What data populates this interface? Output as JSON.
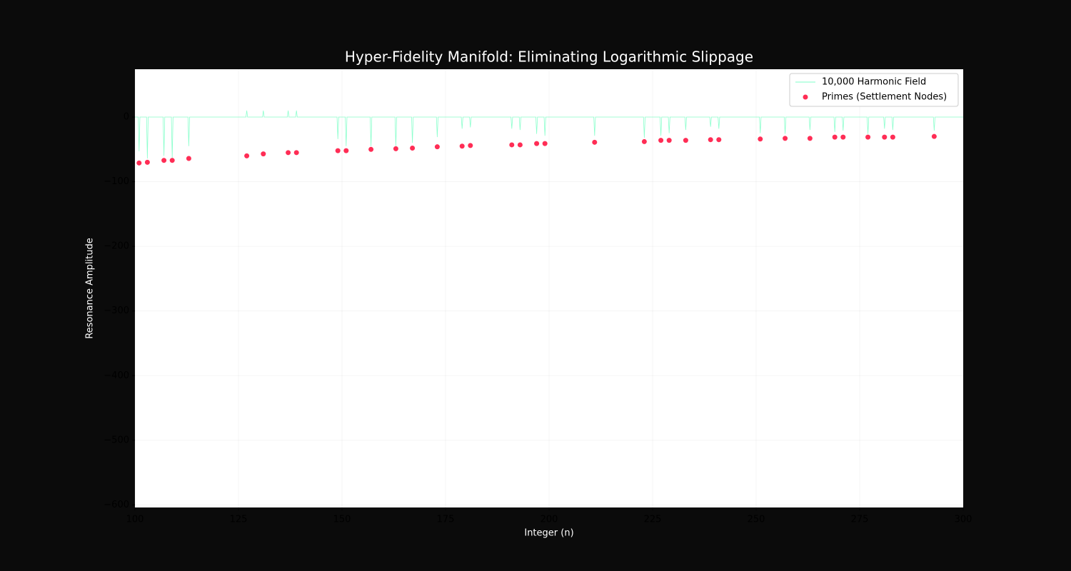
{
  "chart_data": {
    "type": "line",
    "title": "Hyper-Fidelity Manifold: Eliminating Logarithmic Slippage",
    "x_label": "Integer (n)",
    "y_label": "Resonance Amplitude",
    "xlim": [
      100,
      300
    ],
    "ylim": [
      -604,
      74
    ],
    "xticks": [
      100,
      125,
      150,
      175,
      200,
      225,
      250,
      275,
      300
    ],
    "yticks": [
      {
        "value": -600,
        "label": "−600"
      },
      {
        "value": -500,
        "label": "−500"
      },
      {
        "value": -400,
        "label": "−400"
      },
      {
        "value": -300,
        "label": "−300"
      },
      {
        "value": -200,
        "label": "−200"
      },
      {
        "value": -100,
        "label": "−100"
      },
      0
    ],
    "grid": true,
    "legend": "upper right",
    "series": [
      {
        "name": "10,000 Harmonic Field",
        "type": "line",
        "color": "#7fffc8",
        "x": [
          100,
          100.8,
          101,
          101.2,
          102.8,
          103,
          103.2,
          106.8,
          107,
          107.2,
          108.8,
          109,
          109.2,
          112.8,
          113,
          113.2,
          126.8,
          127,
          127.2,
          130.8,
          131,
          131.2,
          136.8,
          137,
          137.2,
          138.8,
          139,
          139.2,
          148.8,
          149,
          149.2,
          150.8,
          151,
          151.2,
          156.8,
          157,
          157.2,
          162.8,
          163,
          163.2,
          166.8,
          167,
          167.2,
          172.8,
          173,
          173.2,
          178.8,
          179,
          179.2,
          180.8,
          181,
          181.2,
          190.8,
          191,
          191.2,
          192.8,
          193,
          193.2,
          196.8,
          197,
          197.2,
          198.8,
          199,
          199.2,
          210.8,
          211,
          211.2,
          222.8,
          223,
          223.2,
          226.8,
          227,
          227.2,
          228.8,
          229,
          229.2,
          232.8,
          233,
          233.2,
          238.8,
          239,
          239.2,
          240.8,
          241,
          241.2,
          250.8,
          251,
          251.2,
          256.8,
          257,
          257.2,
          262.8,
          263,
          263.2,
          268.8,
          269,
          269.2,
          270.8,
          271,
          271.2,
          276.8,
          277,
          277.2,
          280.8,
          281,
          281.2,
          282.8,
          283,
          283.2,
          292.8,
          293,
          293.2,
          300
        ],
        "values": [
          0,
          0,
          -53,
          0,
          0,
          -64,
          0,
          0,
          -60,
          0,
          0,
          -64,
          0,
          0,
          -45,
          0,
          0,
          10,
          0,
          0,
          10,
          0,
          0,
          10,
          0,
          0,
          10,
          0,
          0,
          -34,
          0,
          0,
          -45,
          0,
          0,
          -45,
          0,
          0,
          -45,
          0,
          0,
          -40,
          0,
          0,
          -31,
          0,
          0,
          -18,
          0,
          0,
          -16,
          0,
          0,
          -18,
          0,
          0,
          -20,
          0,
          0,
          -26,
          0,
          0,
          -29,
          0,
          0,
          -29,
          0,
          0,
          -32,
          0,
          0,
          -29,
          0,
          0,
          -25,
          0,
          0,
          -20,
          0,
          0,
          -15,
          0,
          0,
          -18,
          0,
          0,
          -25,
          0,
          0,
          -26,
          0,
          0,
          -20,
          0,
          0,
          -23,
          0,
          0,
          -21,
          0,
          0,
          -26,
          0,
          0,
          -18,
          0,
          0,
          -20,
          0,
          0,
          -21,
          0,
          0
        ]
      },
      {
        "name": "Primes (Settlement Nodes)",
        "type": "scatter",
        "color": "#ff2d55",
        "x": [
          101,
          103,
          107,
          109,
          113,
          127,
          131,
          137,
          139,
          149,
          151,
          157,
          163,
          167,
          173,
          179,
          181,
          191,
          193,
          197,
          199,
          211,
          223,
          227,
          229,
          233,
          239,
          241,
          251,
          257,
          263,
          269,
          271,
          277,
          281,
          283,
          293
        ],
        "values": [
          -71,
          -70,
          -67,
          -67,
          -64,
          -60,
          -57,
          -55,
          -55,
          -52,
          -52,
          -50,
          -49,
          -48,
          -46,
          -45,
          -44,
          -43,
          -43,
          -41,
          -41,
          -39,
          -38,
          -36,
          -36,
          -36,
          -35,
          -35,
          -34,
          -33,
          -33,
          -31,
          -31,
          -31,
          -31,
          -31,
          -30
        ]
      }
    ]
  }
}
